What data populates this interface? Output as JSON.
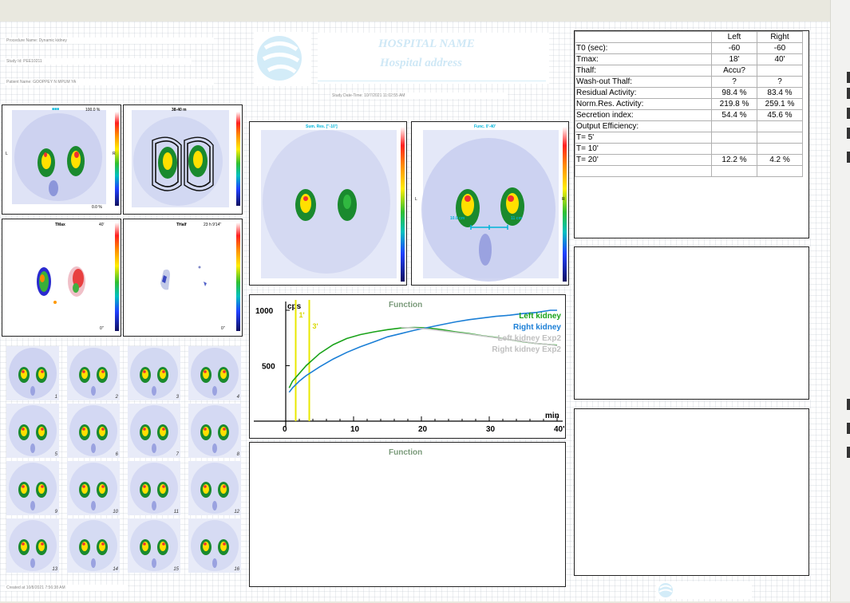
{
  "patient": {
    "procedure": "Procedure Name: Dynamic kidney",
    "study_id": "Study Id: PEE10211",
    "patient_name": "Patient Name: GOOPPEY N MPUM YA",
    "study_datetime": "Study Date-Time: 10/7/2021 11:02:55 AM",
    "created": "Created at 10/8/2021 7:56:38 AM"
  },
  "hospital": {
    "name": "HOSPITAL NAME",
    "address": "Hospital address"
  },
  "panels": {
    "sum_label": "100.0 %",
    "sum_bottom": "0.0 %",
    "roi_title": "38-40 m",
    "tmax_title": "TMax",
    "tmax_value": "40'",
    "tmax_bottom": "0''",
    "thalf_title": "THalf",
    "thalf_value": "23 h 9'14''",
    "thalf_bottom": "0''",
    "sum_res_title": "Sum. Res. [''-10']",
    "func_title": "Func. 0'-40'",
    "dist_left": "10.0 cm",
    "dist_right": "11 cm",
    "left_marker": "L",
    "right_marker": "R"
  },
  "frames": [
    "1",
    "2",
    "3",
    "4",
    "5",
    "6",
    "7",
    "8",
    "9",
    "10",
    "11",
    "12",
    "13",
    "14",
    "15",
    "16"
  ],
  "results": {
    "headers": [
      "",
      "Left",
      "Right"
    ],
    "rows": [
      [
        "T0 (sec):",
        "-60",
        "-60"
      ],
      [
        "Tmax:",
        "18'",
        "40'"
      ],
      [
        "Thalf:",
        "Accu?",
        ""
      ],
      [
        "Wash-out Thalf:",
        "?",
        "?"
      ],
      [
        "Residual Activity:",
        "98.4 %",
        "83.4 %"
      ],
      [
        "Norm.Res. Activity:",
        "219.8 %",
        "259.1 %"
      ],
      [
        "Secretion index:",
        "54.4 %",
        "45.6 %"
      ],
      [
        "Output Efficiency:",
        "",
        ""
      ],
      [
        "T=  5'",
        "",
        ""
      ],
      [
        "T= 10'",
        "",
        ""
      ],
      [
        "T= 20'",
        "12.2 %",
        "4.2 %"
      ],
      [
        "",
        "",
        ""
      ]
    ]
  },
  "chart_data": {
    "type": "line",
    "title": "Function",
    "ylabel": "cps",
    "xlabel": "min",
    "xlim": [
      0,
      40
    ],
    "ylim": [
      0,
      1050
    ],
    "x_ticks": [
      "0",
      "10",
      "20",
      "30",
      "40'"
    ],
    "y_ticks": [
      "500",
      "1000"
    ],
    "markers": [
      {
        "label": "1'",
        "x": 1
      },
      {
        "label": "3'",
        "x": 3
      }
    ],
    "series": [
      {
        "name": "Left kidney",
        "color": "#1aa31a",
        "x": [
          0.5,
          1,
          2,
          3,
          5,
          7,
          9,
          11,
          13,
          15,
          17,
          19,
          21,
          23,
          25,
          27,
          29,
          31,
          33,
          35,
          37,
          39,
          40
        ],
        "y": [
          300,
          360,
          430,
          500,
          610,
          690,
          745,
          780,
          805,
          825,
          840,
          845,
          840,
          825,
          805,
          790,
          770,
          755,
          735,
          715,
          700,
          690,
          685
        ]
      },
      {
        "name": "Right kidney",
        "color": "#1b7fd6",
        "x": [
          0.5,
          1,
          2,
          3,
          5,
          7,
          9,
          11,
          13,
          15,
          17,
          19,
          21,
          23,
          25,
          27,
          29,
          31,
          33,
          35,
          37,
          39,
          40
        ],
        "y": [
          260,
          300,
          360,
          410,
          490,
          560,
          620,
          670,
          715,
          760,
          790,
          820,
          845,
          870,
          895,
          915,
          930,
          945,
          955,
          970,
          980,
          1000,
          1000
        ]
      },
      {
        "name": "Left kidney Exp2",
        "color": "#c8c8c8",
        "x": [
          17,
          19,
          21,
          23,
          25,
          27,
          29,
          31,
          33,
          35,
          37,
          39,
          40
        ],
        "y": [
          845,
          840,
          830,
          815,
          800,
          785,
          768,
          752,
          735,
          717,
          700,
          690,
          680
        ]
      },
      {
        "name": "Right kidney Exp2",
        "color": "#c8c8c8",
        "x": [],
        "y": []
      }
    ]
  },
  "function2": {
    "title": "Function"
  }
}
